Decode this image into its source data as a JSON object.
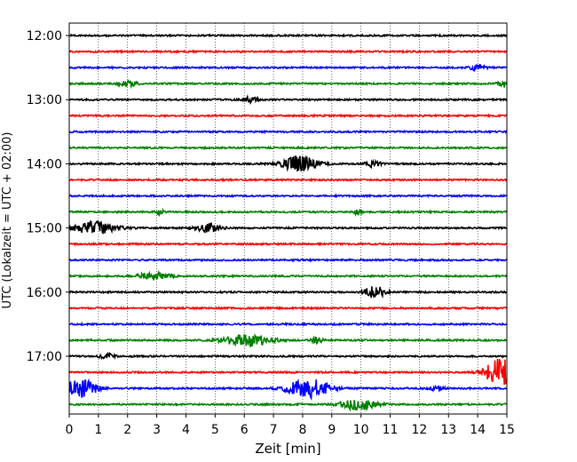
{
  "chart_data": {
    "type": "line",
    "title": "",
    "xlabel": "Zeit  [min]",
    "ylabel": "UTC (Lokalzeit = UTC + 02:00)",
    "xlim": [
      0,
      15
    ],
    "x_ticks": [
      "0",
      "1",
      "2",
      "3",
      "4",
      "5",
      "6",
      "7",
      "8",
      "9",
      "10",
      "11",
      "12",
      "13",
      "14",
      "15"
    ],
    "y_ticks": [
      "12:00",
      "13:00",
      "14:00",
      "15:00",
      "16:00",
      "17:00"
    ],
    "grid": "vertical dotted",
    "trace_colors": [
      "#000000",
      "#ff0000",
      "#0000ff",
      "#008000"
    ],
    "row_interval_min": 15,
    "start_utc": "12:00",
    "series": [
      {
        "start": "12:00",
        "bursts": []
      },
      {
        "start": "12:15",
        "bursts": []
      },
      {
        "start": "12:30",
        "bursts": [
          {
            "t": 14.0,
            "amp": 0.5,
            "dur": 0.4
          }
        ]
      },
      {
        "start": "12:45",
        "bursts": [
          {
            "t": 2.0,
            "amp": 0.4,
            "dur": 0.5
          },
          {
            "t": 14.9,
            "amp": 0.6,
            "dur": 0.3
          }
        ]
      },
      {
        "start": "13:00",
        "bursts": [
          {
            "t": 6.2,
            "amp": 0.4,
            "dur": 0.4
          }
        ]
      },
      {
        "start": "13:15",
        "bursts": []
      },
      {
        "start": "13:30",
        "bursts": []
      },
      {
        "start": "13:45",
        "bursts": []
      },
      {
        "start": "14:00",
        "bursts": [
          {
            "t": 7.9,
            "amp": 1.3,
            "dur": 0.9
          },
          {
            "t": 10.4,
            "amp": 0.5,
            "dur": 0.4
          }
        ]
      },
      {
        "start": "14:15",
        "bursts": []
      },
      {
        "start": "14:30",
        "bursts": []
      },
      {
        "start": "14:45",
        "bursts": [
          {
            "t": 3.1,
            "amp": 0.4,
            "dur": 0.2
          },
          {
            "t": 9.9,
            "amp": 0.4,
            "dur": 0.2
          }
        ]
      },
      {
        "start": "15:00",
        "bursts": [
          {
            "t": 0.9,
            "amp": 1.0,
            "dur": 1.1
          },
          {
            "t": 4.8,
            "amp": 0.8,
            "dur": 0.6
          }
        ]
      },
      {
        "start": "15:15",
        "bursts": []
      },
      {
        "start": "15:30",
        "bursts": []
      },
      {
        "start": "15:45",
        "bursts": [
          {
            "t": 2.9,
            "amp": 0.6,
            "dur": 0.8
          }
        ]
      },
      {
        "start": "16:00",
        "bursts": [
          {
            "t": 10.5,
            "amp": 1.0,
            "dur": 0.5
          }
        ]
      },
      {
        "start": "16:15",
        "bursts": []
      },
      {
        "start": "16:30",
        "bursts": []
      },
      {
        "start": "16:45",
        "bursts": [
          {
            "t": 6.1,
            "amp": 1.0,
            "dur": 1.2
          },
          {
            "t": 8.5,
            "amp": 0.4,
            "dur": 0.3
          }
        ]
      },
      {
        "start": "17:00",
        "bursts": [
          {
            "t": 1.3,
            "amp": 0.4,
            "dur": 0.4
          }
        ]
      },
      {
        "start": "17:15",
        "bursts": [
          {
            "t": 14.75,
            "amp": 2.2,
            "dur": 0.8
          }
        ]
      },
      {
        "start": "17:30",
        "bursts": [
          {
            "t": 0.4,
            "amp": 1.6,
            "dur": 0.8
          },
          {
            "t": 8.2,
            "amp": 1.6,
            "dur": 1.1
          },
          {
            "t": 12.6,
            "amp": 0.3,
            "dur": 0.4
          }
        ]
      },
      {
        "start": "17:45",
        "bursts": [
          {
            "t": 9.9,
            "amp": 0.9,
            "dur": 0.9
          }
        ]
      }
    ]
  }
}
